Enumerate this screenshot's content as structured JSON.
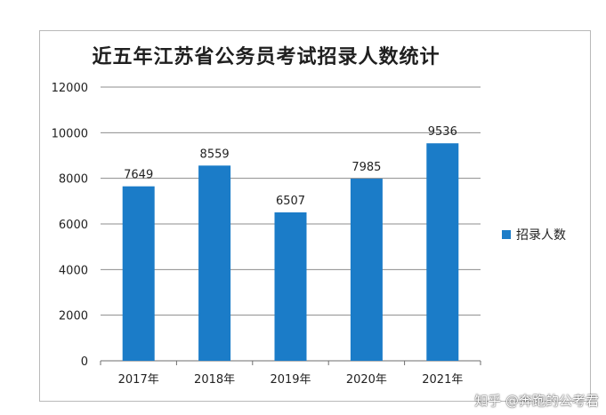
{
  "chart_data": {
    "type": "bar",
    "title": "近五年江苏省公务员考试招录人数统计",
    "categories": [
      "2017年",
      "2018年",
      "2019年",
      "2020年",
      "2021年"
    ],
    "series": [
      {
        "name": "招录人数",
        "values": [
          7649,
          8559,
          6507,
          7985,
          9536
        ]
      }
    ],
    "ylim": [
      0,
      12000
    ],
    "yticks": [
      0,
      2000,
      4000,
      6000,
      8000,
      10000,
      12000
    ],
    "grid": true,
    "legend_position": "right",
    "bar_color": "#1b7cc8"
  },
  "watermark": "知乎 @奔跑的公考君"
}
